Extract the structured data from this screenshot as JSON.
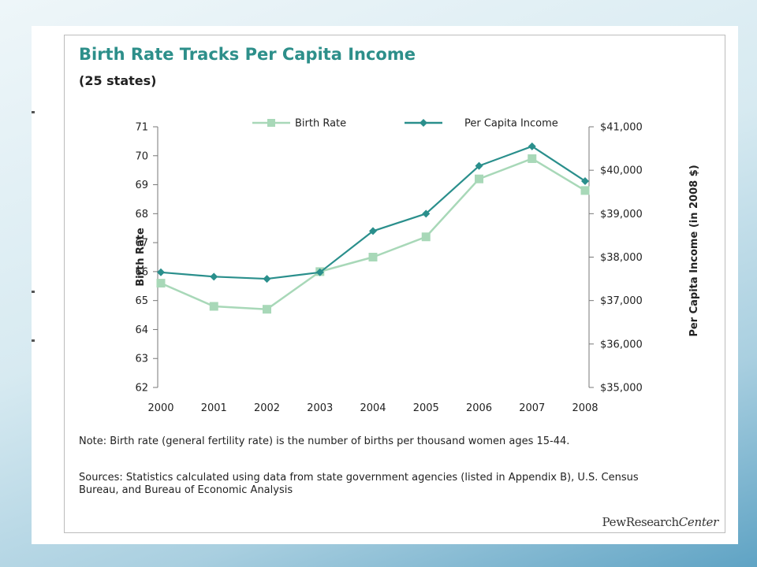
{
  "chart": {
    "title": "Birth Rate Tracks Per Capita Income",
    "subtitle": "(25 states)",
    "note": "Note: Birth rate (general fertility rate) is the number of births per thousand women ages 15-44.",
    "sources": "Sources: Statistics calculated using data from state government agencies (listed in Appendix B), U.S. Census Bureau, and Bureau of Economic Analysis",
    "logo": "PewResearchCenter"
  },
  "chart_data": {
    "type": "line",
    "title": "Birth Rate Tracks Per Capita Income",
    "subtitle": "(25 states)",
    "x": [
      "2000",
      "2001",
      "2002",
      "2003",
      "2004",
      "2005",
      "2006",
      "2007",
      "2008"
    ],
    "xlabel": "",
    "ylabel": "Birth Rate",
    "y2label": "Per Capita Income (in 2008 $)",
    "ylim": [
      62,
      71
    ],
    "y2lim": [
      35000,
      41000
    ],
    "yticks": [
      "71",
      "70",
      "69",
      "68",
      "67",
      "66",
      "65",
      "64",
      "63",
      "62"
    ],
    "yticks_values": [
      71,
      70,
      69,
      68,
      67,
      66,
      65,
      64,
      63,
      62
    ],
    "y2ticks": [
      "$41,000",
      "$40,000",
      "$39,000",
      "$38,000",
      "$37,000",
      "$36,000",
      "$35,000"
    ],
    "y2ticks_values": [
      41000,
      40000,
      39000,
      38000,
      37000,
      36000,
      35000
    ],
    "grid": false,
    "legend_position": "top",
    "series": [
      {
        "name": "Birth Rate",
        "axis": "left",
        "marker": "square",
        "color": "#a8d8b8",
        "values": [
          65.6,
          64.8,
          64.7,
          66.0,
          66.5,
          67.2,
          69.2,
          69.9,
          68.8
        ]
      },
      {
        "name": "Per Capita Income",
        "axis": "right",
        "marker": "diamond",
        "color": "#2a8f8c",
        "values": [
          37650,
          37550,
          37500,
          37650,
          38600,
          39000,
          40100,
          40550,
          39750
        ]
      }
    ]
  }
}
